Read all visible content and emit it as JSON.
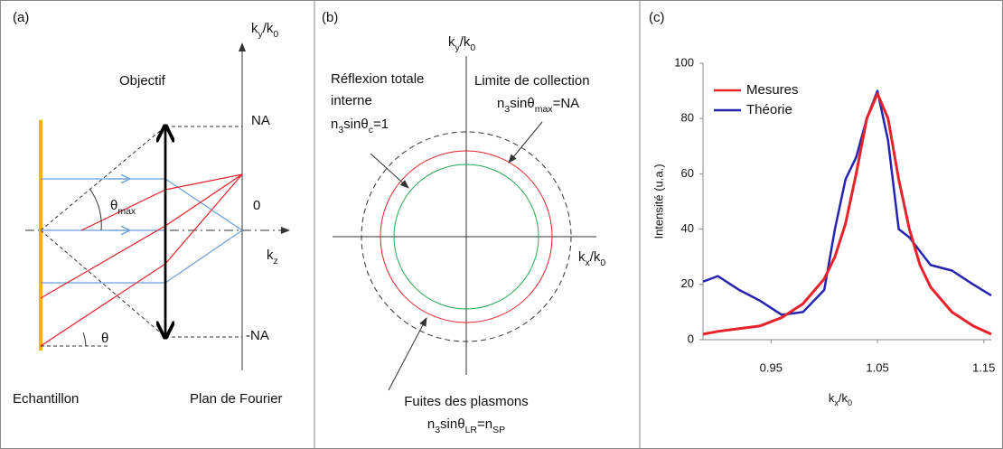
{
  "panel_a": {
    "tag": "(a)",
    "objective": "Objectif",
    "na": "NA",
    "zero": "0",
    "minus_na": "-NA",
    "theta_max": [
      "θ",
      "max"
    ],
    "theta": "θ",
    "kz": [
      "k",
      "z"
    ],
    "ky": [
      "k",
      "y",
      "/k",
      "0"
    ],
    "sample": "Echantillon",
    "fourier_plane": "Plan de Fourier"
  },
  "panel_b": {
    "tag": "(b)",
    "ky": [
      "k",
      "y",
      "/k",
      "0"
    ],
    "kx": [
      "k",
      "x",
      "/k",
      "0"
    ],
    "tir": {
      "lines": [
        "Réflexion totale",
        "interne"
      ],
      "formula": [
        "n",
        "3",
        "sinθ",
        "c",
        "=1"
      ]
    },
    "collection": {
      "line": "Limite de collection",
      "formula": [
        "n",
        "3",
        "sinθ",
        "max",
        "=NA"
      ]
    },
    "leakage": {
      "line": "Fuites des plasmons",
      "formula": [
        "n",
        "3",
        "sinθ",
        "LR",
        "=n",
        "SP"
      ]
    }
  },
  "chart_data": {
    "type": "line",
    "tag": "(c)",
    "xlabel": [
      "k",
      "x",
      "/k",
      "0"
    ],
    "ylabel": "Intensité (u.a.)",
    "x": [
      0.886,
      0.9,
      0.92,
      0.94,
      0.96,
      0.98,
      1.0,
      1.01,
      1.02,
      1.03,
      1.04,
      1.05,
      1.06,
      1.07,
      1.08,
      1.09,
      1.1,
      1.12,
      1.14,
      1.157
    ],
    "series": [
      {
        "name": "Mesures",
        "color": "#e8222a",
        "values": [
          2,
          3,
          4,
          5,
          8,
          13,
          22,
          30,
          42,
          60,
          80,
          89,
          80,
          58,
          40,
          27,
          19,
          10,
          5,
          2
        ]
      },
      {
        "name": "Théorie",
        "color": "#2424b0",
        "values": [
          21,
          23,
          18,
          14,
          9,
          10,
          18,
          40,
          58,
          66,
          80,
          90,
          72,
          40,
          37,
          32,
          27,
          25,
          20,
          16
        ]
      }
    ],
    "xlim": [
      0.886,
      1.157
    ],
    "ylim": [
      0,
      100
    ],
    "xticks": [
      0.95,
      1.05,
      1.15
    ],
    "yticks": [
      0,
      20,
      40,
      60,
      80,
      100
    ],
    "legend": "upper-center"
  }
}
